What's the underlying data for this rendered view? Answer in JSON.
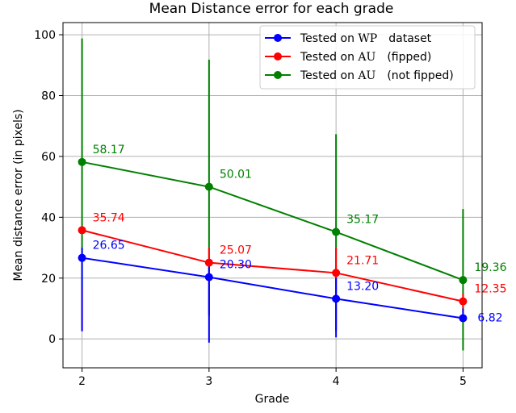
{
  "chart_data": {
    "type": "line",
    "title": "Mean Distance error for each grade",
    "xlabel": "Grade",
    "ylabel": "Mean distance error (in pixels)",
    "x": [
      2,
      3,
      4,
      5
    ],
    "x_ticks": [
      "2",
      "3",
      "4",
      "5"
    ],
    "xlim": [
      1.85,
      5.15
    ],
    "ylim": [
      -9.5,
      104
    ],
    "y_ticks": [
      "0",
      "20",
      "40",
      "60",
      "80",
      "100"
    ],
    "grid": true,
    "legend_position": "top-right",
    "series": [
      {
        "legend_prefix": "Tested on ",
        "legend_dataset": "WP",
        "legend_suffix": "dataset",
        "color": "#0000ff",
        "values": [
          26.65,
          20.3,
          13.2,
          6.82
        ],
        "labels": [
          "26.65",
          "20.30",
          "13.20",
          "6.82"
        ],
        "error_low": [
          2.5,
          -1.2,
          0.5,
          5.5
        ],
        "error_high": [
          30.0,
          25.0,
          20.0,
          10.0
        ]
      },
      {
        "legend_prefix": "Tested on ",
        "legend_dataset": "AU",
        "legend_suffix": "(fipped)",
        "color": "#ff0000",
        "values": [
          35.74,
          25.07,
          21.71,
          12.35
        ],
        "labels": [
          "35.74",
          "25.07",
          "21.71",
          "12.35"
        ],
        "error_low": [
          3.0,
          7.5,
          2.5,
          9.0
        ],
        "error_high": [
          17.0,
          30.0,
          30.0,
          15.0
        ]
      },
      {
        "legend_prefix": "Tested on ",
        "legend_dataset": "AU",
        "legend_suffix": "(not fipped)",
        "color": "#008000",
        "values": [
          58.17,
          50.01,
          35.17,
          19.36
        ],
        "labels": [
          "58.17",
          "50.01",
          "35.17",
          "19.36"
        ],
        "error_low": [
          17.0,
          8.0,
          3.0,
          -3.8
        ],
        "error_high": [
          98.8,
          91.8,
          67.3,
          42.7
        ]
      }
    ]
  }
}
